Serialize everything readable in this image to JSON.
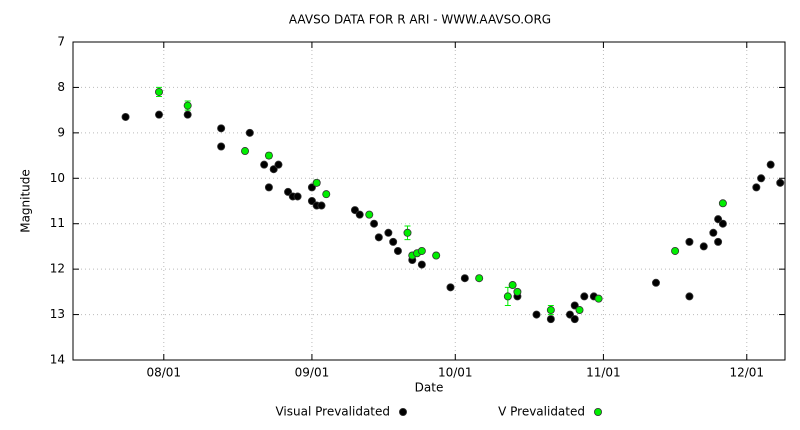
{
  "chart_data": {
    "type": "scatter",
    "title": "AAVSO DATA FOR R ARI - WWW.AAVSO.ORG",
    "x_label": "Date",
    "y_label": "Magnitude",
    "xlim": [
      "07/13",
      "12/09"
    ],
    "xticks": [
      "08/01",
      "09/01",
      "10/01",
      "11/01",
      "12/01"
    ],
    "ylim": [
      7,
      14
    ],
    "yticks": [
      7,
      8,
      9,
      10,
      11,
      12,
      13,
      14
    ],
    "y_inverted": true,
    "grid": true,
    "legend": "bottom",
    "series": [
      {
        "name": "Visual Prevalidated",
        "color": "#000000",
        "x": [
          "07/24",
          "07/31",
          "08/06",
          "08/13",
          "08/13",
          "08/19",
          "08/22",
          "08/23",
          "08/24",
          "08/25",
          "08/27",
          "08/28",
          "08/29",
          "09/01",
          "09/01",
          "09/02",
          "09/03",
          "09/10",
          "09/11",
          "09/14",
          "09/15",
          "09/17",
          "09/18",
          "09/19",
          "09/22",
          "09/24",
          "09/30",
          "10/03",
          "10/14",
          "10/18",
          "10/21",
          "10/25",
          "10/26",
          "10/26",
          "10/28",
          "10/30",
          "11/12",
          "11/19",
          "11/19",
          "11/22",
          "11/24",
          "11/25",
          "11/25",
          "11/26",
          "12/03",
          "12/04",
          "12/06",
          "12/08"
        ],
        "values": [
          8.65,
          8.6,
          8.6,
          8.9,
          9.3,
          9.0,
          9.7,
          10.2,
          9.8,
          9.7,
          10.3,
          10.4,
          10.4,
          10.2,
          10.5,
          10.6,
          10.6,
          10.7,
          10.8,
          11.0,
          11.3,
          11.2,
          11.4,
          11.6,
          11.8,
          11.9,
          12.4,
          12.2,
          12.6,
          13.0,
          13.1,
          13.0,
          13.1,
          12.8,
          12.6,
          12.6,
          12.3,
          12.6,
          11.4,
          11.5,
          11.2,
          11.4,
          10.9,
          11.0,
          10.2,
          10.0,
          9.7,
          10.1
        ]
      },
      {
        "name": "V Prevalidated",
        "color": "#00ee00",
        "x": [
          "07/31",
          "08/06",
          "08/18",
          "08/23",
          "09/02",
          "09/04",
          "09/13",
          "09/21",
          "09/22",
          "09/23",
          "09/24",
          "09/27",
          "10/06",
          "10/12",
          "10/13",
          "10/14",
          "10/21",
          "10/27",
          "10/31",
          "11/16",
          "11/26"
        ],
        "values": [
          8.1,
          8.4,
          9.4,
          9.5,
          10.1,
          10.35,
          10.8,
          11.2,
          11.7,
          11.65,
          11.6,
          11.7,
          12.2,
          12.6,
          12.35,
          12.5,
          12.9,
          12.9,
          12.65,
          11.6,
          10.55
        ],
        "errors": [
          0.1,
          0.1,
          0.03,
          0.06,
          0.06,
          0.03,
          0.03,
          0.15,
          0.05,
          0.05,
          0.03,
          0.03,
          0.03,
          0.2,
          0.05,
          0.03,
          0.1,
          0.05,
          0.03,
          0.03,
          0.03
        ]
      }
    ]
  }
}
